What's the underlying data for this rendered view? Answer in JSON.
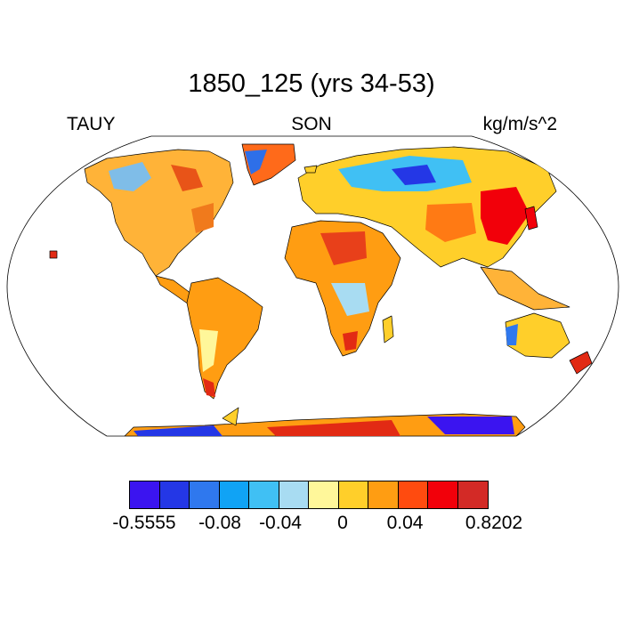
{
  "title": "1850_125 (yrs 34-53)",
  "left_label": "TAUY",
  "center_label": "SON",
  "right_label": "kg/m/s^2",
  "colorbar": {
    "colors": [
      "#3b14f0",
      "#2437e6",
      "#2f78ee",
      "#10a3f5",
      "#40c0f4",
      "#a8dcf2",
      "#fff79a",
      "#ffcf2a",
      "#ff9d12",
      "#ff4b0f",
      "#f2000a",
      "#d32a26"
    ],
    "labels": [
      "-0.5555",
      "-0.08",
      "-0.04",
      "0",
      "0.04",
      "0.8202"
    ]
  }
}
